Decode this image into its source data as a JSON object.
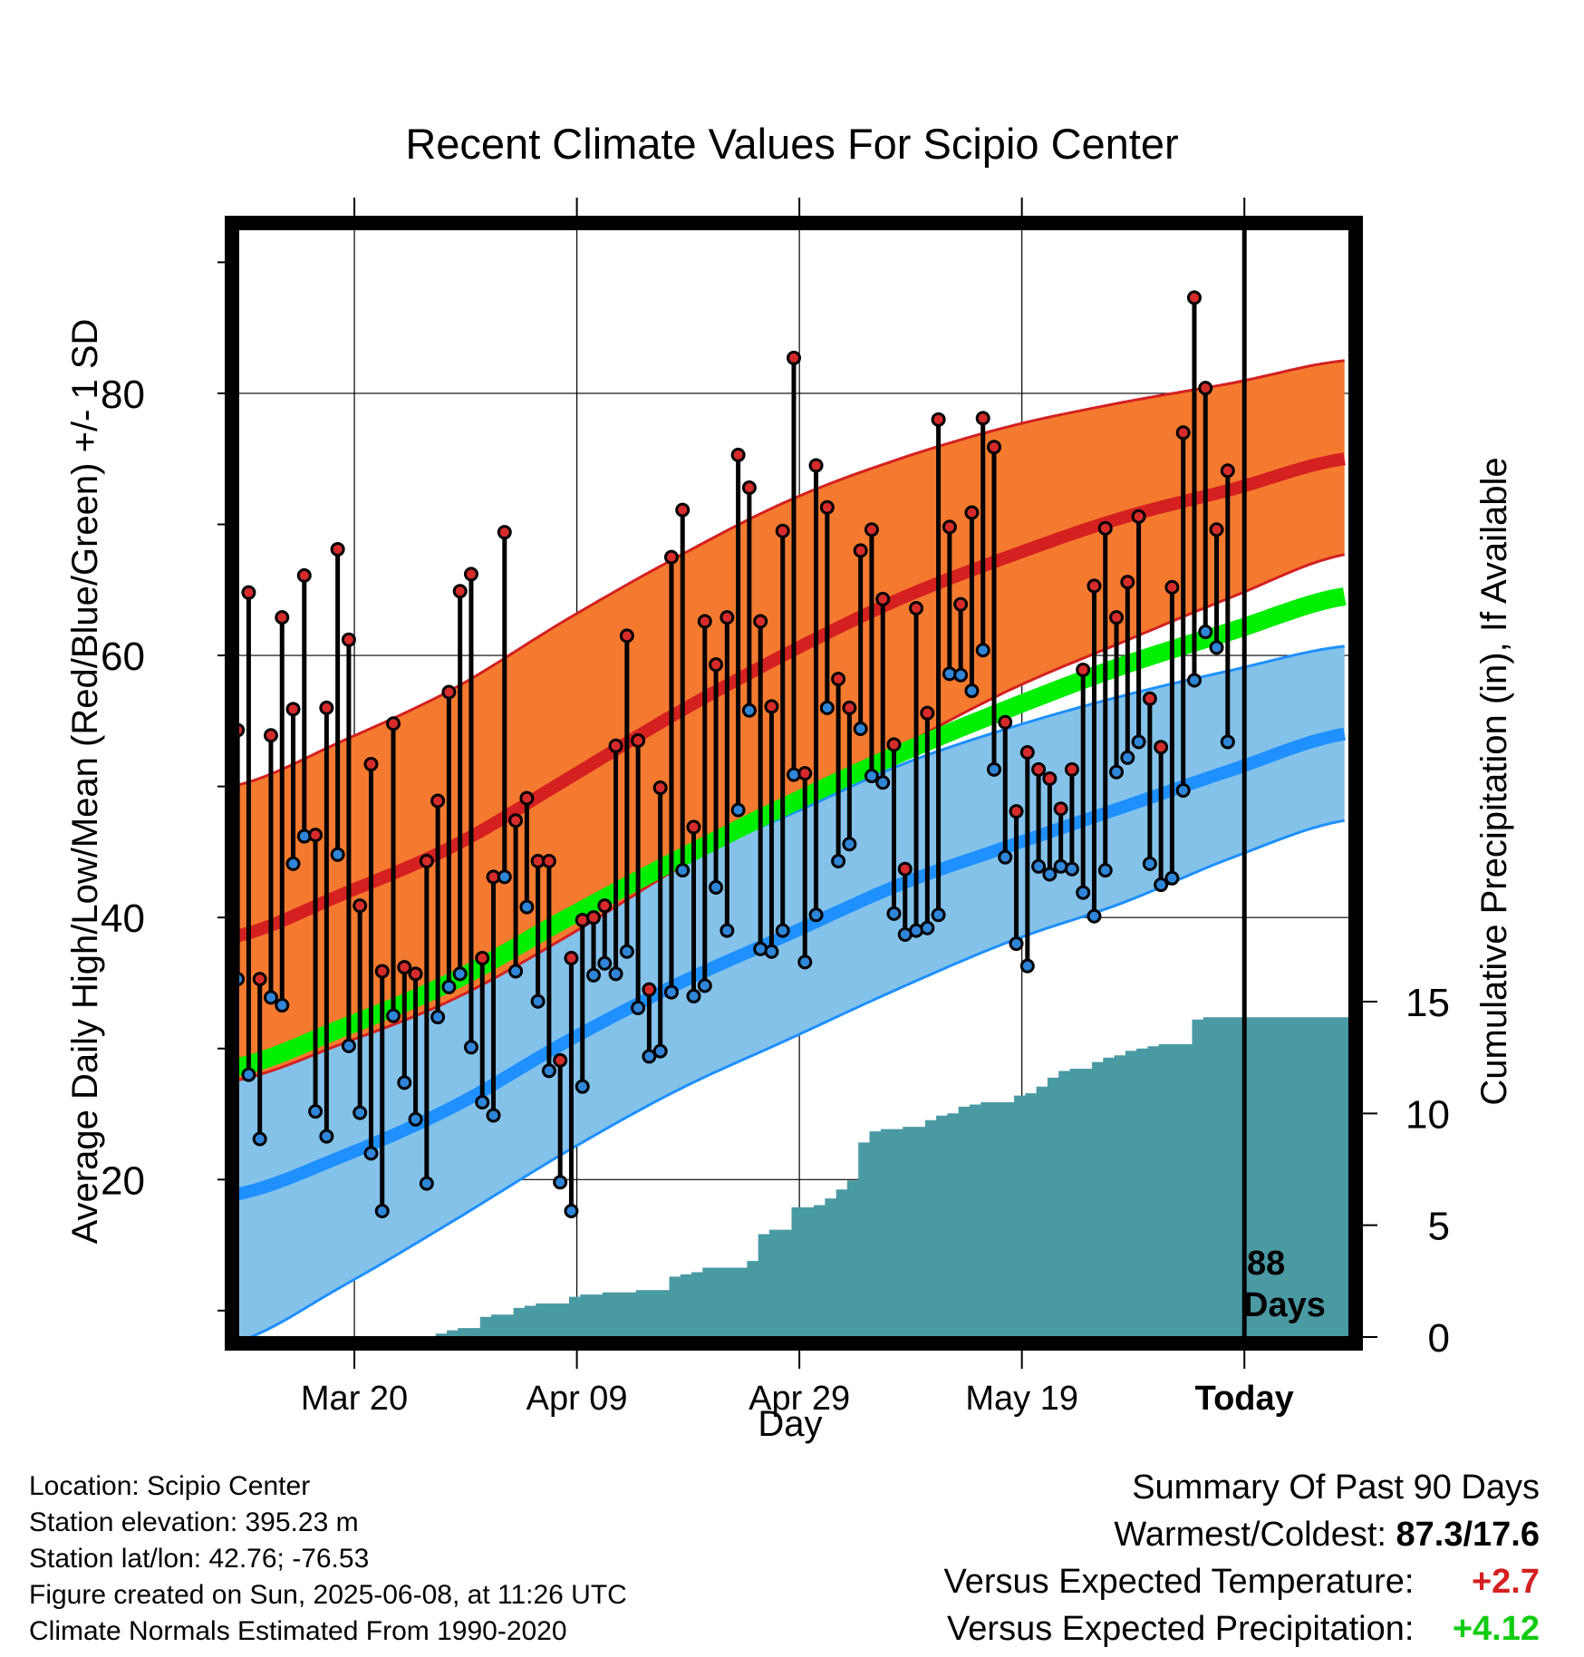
{
  "colors": {
    "high_band": "#f47a30",
    "high_band_edge": "#d42020",
    "high_mean": "#d42020",
    "low_band": "#84c2ea",
    "low_band_edge": "#1e90ff",
    "low_mean": "#1e90ff",
    "daily_mean": "#00ee00",
    "precip": "#4a9aa4",
    "high_marker": "#d62b2b",
    "low_marker": "#2f86d8"
  },
  "chart_data": {
    "type": "line",
    "title": "Recent Climate Values For Scipio Center",
    "xlabel": "Day",
    "ylabel": "Average Daily High/Low/Mean (Red/Blue/Green) +/- 1 SD",
    "y2label": "Cumulative Precipitation (in), If Available",
    "x_ticks": [
      "Mar 20",
      "Apr 09",
      "Apr 29",
      "May 19",
      "Today"
    ],
    "x_tick_days": [
      11,
      31,
      51,
      71,
      91
    ],
    "xlim_days": [
      0,
      101
    ],
    "today_day": 91,
    "y_ticks": [
      20,
      40,
      60,
      80
    ],
    "ylim": [
      7.5,
      93
    ],
    "y2_ticks": [
      0,
      5,
      10,
      15
    ],
    "y2lim": [
      0,
      15
    ],
    "grid": true,
    "annotation": {
      "line1": "88",
      "line2": "Days"
    },
    "normals": {
      "day": [
        0,
        10,
        20,
        30,
        40,
        50,
        60,
        70,
        80,
        90,
        100
      ],
      "high_mean": [
        38.5,
        41.8,
        45.5,
        50.5,
        55.6,
        60.2,
        64.3,
        67.6,
        70.5,
        72.7,
        75.0
      ],
      "high_upper": [
        50.0,
        53.5,
        57.5,
        62.7,
        67.5,
        71.8,
        75.0,
        77.5,
        79.3,
        80.8,
        82.5
      ],
      "high_lower": [
        27.5,
        30.4,
        33.8,
        38.5,
        43.7,
        48.4,
        53.0,
        57.4,
        61.0,
        64.5,
        67.7
      ],
      "low_mean": [
        18.8,
        21.8,
        25.6,
        30.5,
        34.9,
        38.7,
        42.5,
        45.5,
        48.4,
        51.3,
        54.0
      ],
      "low_upper": [
        30.0,
        31.9,
        35.6,
        40.3,
        44.3,
        47.8,
        51.6,
        54.5,
        56.9,
        58.9,
        60.7
      ],
      "low_lower": [
        7.5,
        11.9,
        16.9,
        22.1,
        26.8,
        30.7,
        34.6,
        38.2,
        41.1,
        44.6,
        47.4
      ],
      "daily_mean": [
        28.5,
        31.6,
        35.2,
        39.9,
        44.4,
        48.6,
        52.5,
        56.0,
        59.2,
        61.9,
        64.5
      ]
    },
    "series": [
      {
        "name": "Daily High",
        "values": [
          54.3,
          64.8,
          35.3,
          53.9,
          62.9,
          55.9,
          66.1,
          46.3,
          56.0,
          68.1,
          61.2,
          40.9,
          51.7,
          35.9,
          54.8,
          36.2,
          35.7,
          44.3,
          48.9,
          57.2,
          64.9,
          66.2,
          36.9,
          43.1,
          69.4,
          47.4,
          49.1,
          44.3,
          44.3,
          29.1,
          36.9,
          39.8,
          40.0,
          40.9,
          53.1,
          61.5,
          53.5,
          34.5,
          49.9,
          67.5,
          71.1,
          46.9,
          62.6,
          59.3,
          62.9,
          75.3,
          72.8,
          62.6,
          56.1,
          69.5,
          82.7,
          51.0,
          74.5,
          71.3,
          58.2,
          56.0,
          68.0,
          69.6,
          64.3,
          53.2,
          43.7,
          63.6,
          55.6,
          78.0,
          69.8,
          63.9,
          70.9,
          78.1,
          75.9,
          54.9,
          48.1,
          52.6,
          51.3,
          50.6,
          48.3,
          51.3,
          58.9,
          65.3,
          69.7,
          62.9,
          65.6,
          70.6,
          56.7,
          53.0,
          65.2,
          77.0,
          87.3,
          80.4,
          69.6,
          74.1
        ]
      },
      {
        "name": "Daily Low",
        "values": [
          35.3,
          28.0,
          23.1,
          33.9,
          33.3,
          44.1,
          46.2,
          25.2,
          23.3,
          44.8,
          30.2,
          25.1,
          22.0,
          17.6,
          32.5,
          27.4,
          24.6,
          19.7,
          32.4,
          34.7,
          35.7,
          30.1,
          25.9,
          24.9,
          43.1,
          35.9,
          40.8,
          33.6,
          28.3,
          19.8,
          17.6,
          27.1,
          35.6,
          36.5,
          35.7,
          37.4,
          33.1,
          29.4,
          29.8,
          34.3,
          43.6,
          34.0,
          34.8,
          42.3,
          39.0,
          48.2,
          55.8,
          37.6,
          37.4,
          39.0,
          50.9,
          36.6,
          40.2,
          56.0,
          44.3,
          45.6,
          54.4,
          50.8,
          50.3,
          40.3,
          38.7,
          39.0,
          39.2,
          40.2,
          58.6,
          58.5,
          57.3,
          60.4,
          51.3,
          44.6,
          38.0,
          36.3,
          43.9,
          43.3,
          43.9,
          43.7,
          41.9,
          40.1,
          43.6,
          51.1,
          52.2,
          53.4,
          44.1,
          42.5,
          43.0,
          49.7,
          58.1,
          61.8,
          60.6,
          53.4
        ]
      }
    ],
    "precip": {
      "day": [
        0,
        18.3,
        19.3,
        20.3,
        21.3,
        22.3,
        23.3,
        24.3,
        25.3,
        26.3,
        27.3,
        28.3,
        29.3,
        30.3,
        31.3,
        32.3,
        33.3,
        34.3,
        35.3,
        36.3,
        37.3,
        38.3,
        39.3,
        40.3,
        41.3,
        42.3,
        43.3,
        44.3,
        45.3,
        46.3,
        47.3,
        48.3,
        49.3,
        50.3,
        51.3,
        52.3,
        53.3,
        54.3,
        55.3,
        56.3,
        57.3,
        58.3,
        59.3,
        60.3,
        61.3,
        62.3,
        63.3,
        64.3,
        65.3,
        66.3,
        67.3,
        68.3,
        69.3,
        70.3,
        71.3,
        72.3,
        73.3,
        74.3,
        75.3,
        76.3,
        77.3,
        78.3,
        79.3,
        80.3,
        81.3,
        82.3,
        83.3,
        84.3,
        85.3,
        86.3,
        87.3,
        88.3,
        89.3,
        90.3,
        91.3,
        101
      ],
      "values": [
        0,
        0.15,
        0.3,
        0.4,
        0.4,
        0.9,
        1.0,
        1.0,
        1.3,
        1.4,
        1.5,
        1.5,
        1.5,
        1.8,
        1.9,
        1.9,
        2.0,
        2.0,
        2.0,
        2.1,
        2.1,
        2.1,
        2.7,
        2.8,
        2.9,
        3.1,
        3.1,
        3.1,
        3.1,
        3.4,
        4.6,
        4.8,
        4.8,
        5.8,
        5.8,
        5.9,
        6.2,
        6.6,
        7.0,
        8.7,
        9.2,
        9.3,
        9.3,
        9.4,
        9.4,
        9.7,
        9.9,
        10.0,
        10.3,
        10.4,
        10.5,
        10.5,
        10.5,
        10.8,
        10.9,
        11.2,
        11.6,
        11.9,
        12.0,
        12.0,
        12.3,
        12.5,
        12.6,
        12.8,
        12.9,
        13.0,
        13.1,
        13.1,
        13.1,
        14.2,
        14.3,
        14.3,
        14.3,
        14.3,
        14.3,
        14.3
      ]
    }
  },
  "info": {
    "location": "Location: Scipio Center",
    "elevation": "Station elevation: 395.23 m",
    "latlon": "Station lat/lon: 42.76; -76.53",
    "created": "Figure created on Sun, 2025-06-08, at 11:26 UTC",
    "normals": "Climate Normals Estimated From 1990-2020"
  },
  "summary": {
    "heading": "Summary Of Past 90 Days",
    "warmest_coldest_label": "Warmest/Coldest:",
    "warmest_coldest_value": "87.3/17.6",
    "temp_label": "Versus Expected Temperature:",
    "temp_value": "+2.7",
    "precip_label": "Versus Expected Precipitation:",
    "precip_value": "+4.12"
  }
}
